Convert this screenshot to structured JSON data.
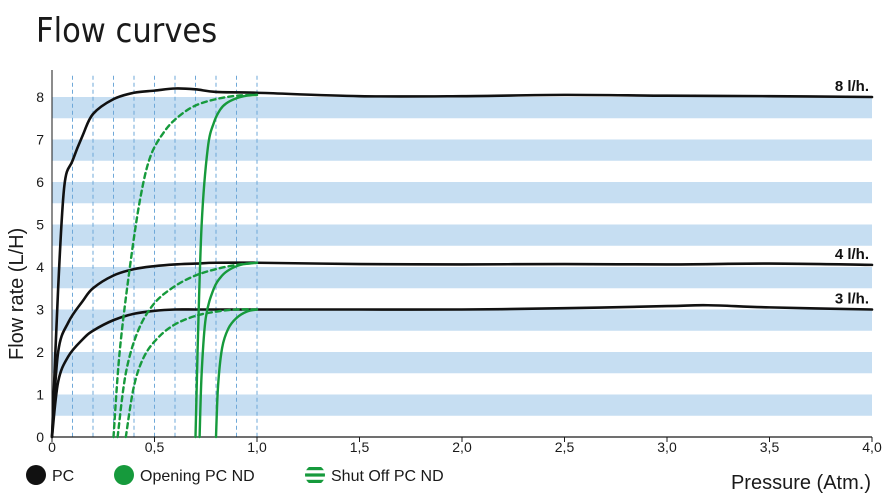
{
  "chart_data": {
    "type": "line",
    "title": "Flow curves",
    "xlabel": "Pressure (Atm.)",
    "ylabel": "Flow rate (L/H)",
    "xlim": [
      0,
      4.0
    ],
    "ylim": [
      0,
      8.5
    ],
    "x_ticks": [
      "0",
      "0,5",
      "1,0",
      "1,5",
      "2,0",
      "2,5",
      "3,0",
      "3,5",
      "4,0"
    ],
    "y_ticks": [
      "0",
      "1",
      "2",
      "3",
      "4",
      "5",
      "6",
      "7",
      "8"
    ],
    "legend": [
      {
        "label": "PC",
        "color": "#111111",
        "style": "dot"
      },
      {
        "label": "Opening PC ND",
        "color": "#169a3c",
        "style": "dot"
      },
      {
        "label": "Shut Off PC ND",
        "color": "#169a3c",
        "style": "striped"
      }
    ],
    "series": [
      {
        "name": "8 l/h.",
        "group": "PC",
        "color": "#111111",
        "dash": false,
        "x": [
          0.0,
          0.03,
          0.06,
          0.1,
          0.15,
          0.2,
          0.3,
          0.4,
          0.5,
          0.6,
          0.7,
          0.8,
          1.0,
          1.5,
          2.0,
          2.5,
          3.0,
          3.5,
          4.0
        ],
        "y": [
          0.0,
          3.5,
          5.9,
          6.5,
          7.1,
          7.6,
          7.95,
          8.1,
          8.15,
          8.2,
          8.18,
          8.12,
          8.1,
          8.02,
          8.02,
          8.05,
          8.03,
          8.02,
          8.0
        ]
      },
      {
        "name": "4 l/h.",
        "group": "PC",
        "color": "#111111",
        "dash": false,
        "x": [
          0.0,
          0.03,
          0.08,
          0.15,
          0.2,
          0.3,
          0.4,
          0.5,
          0.6,
          0.7,
          0.8,
          1.0,
          1.5,
          2.0,
          2.5,
          3.0,
          3.5,
          4.0
        ],
        "y": [
          0.0,
          2.0,
          2.7,
          3.2,
          3.5,
          3.8,
          3.95,
          4.02,
          4.06,
          4.08,
          4.1,
          4.1,
          4.07,
          4.06,
          4.07,
          4.06,
          4.08,
          4.05
        ]
      },
      {
        "name": "3 l/h.",
        "group": "PC",
        "color": "#111111",
        "dash": false,
        "x": [
          0.0,
          0.03,
          0.08,
          0.15,
          0.2,
          0.3,
          0.4,
          0.5,
          0.6,
          0.7,
          0.8,
          1.0,
          1.5,
          2.0,
          2.5,
          3.0,
          3.2,
          3.5,
          4.0
        ],
        "y": [
          0.0,
          1.3,
          1.9,
          2.3,
          2.5,
          2.75,
          2.9,
          2.97,
          3.0,
          3.0,
          3.0,
          3.0,
          3.0,
          3.0,
          3.03,
          3.08,
          3.1,
          3.05,
          3.0
        ]
      },
      {
        "name": "",
        "group": "Shut Off PC ND",
        "color": "#169a3c",
        "dash": true,
        "x": [
          0.3,
          0.33,
          0.38,
          0.43,
          0.48,
          0.55,
          0.62,
          0.7,
          0.8,
          0.9,
          1.0
        ],
        "y": [
          0.0,
          2.0,
          4.0,
          5.6,
          6.6,
          7.2,
          7.55,
          7.8,
          7.95,
          8.03,
          8.05
        ]
      },
      {
        "name": "",
        "group": "Shut Off PC ND",
        "color": "#169a3c",
        "dash": true,
        "x": [
          0.32,
          0.36,
          0.42,
          0.5,
          0.6,
          0.7,
          0.8,
          0.9,
          1.0
        ],
        "y": [
          0.0,
          1.5,
          2.5,
          3.15,
          3.55,
          3.8,
          3.95,
          4.05,
          4.1
        ]
      },
      {
        "name": "",
        "group": "Shut Off PC ND",
        "color": "#169a3c",
        "dash": true,
        "x": [
          0.36,
          0.4,
          0.45,
          0.52,
          0.6,
          0.7,
          0.8,
          0.9,
          1.0
        ],
        "y": [
          0.0,
          1.2,
          1.9,
          2.35,
          2.65,
          2.85,
          2.95,
          3.0,
          3.0
        ]
      },
      {
        "name": "",
        "group": "Opening PC ND",
        "color": "#169a3c",
        "dash": false,
        "x": [
          0.7,
          0.71,
          0.73,
          0.76,
          0.79,
          0.82,
          0.85,
          0.9,
          0.95,
          1.0
        ],
        "y": [
          0.0,
          2.0,
          5.0,
          6.8,
          7.4,
          7.7,
          7.85,
          7.97,
          8.03,
          8.05
        ]
      },
      {
        "name": "",
        "group": "Opening PC ND",
        "color": "#169a3c",
        "dash": false,
        "x": [
          0.72,
          0.73,
          0.75,
          0.79,
          0.83,
          0.87,
          0.92,
          0.96,
          1.0
        ],
        "y": [
          0.0,
          1.5,
          2.8,
          3.5,
          3.8,
          3.95,
          4.05,
          4.08,
          4.1
        ]
      },
      {
        "name": "",
        "group": "Opening PC ND",
        "color": "#169a3c",
        "dash": false,
        "x": [
          0.8,
          0.81,
          0.83,
          0.86,
          0.9,
          0.95,
          1.0
        ],
        "y": [
          0.0,
          1.2,
          2.1,
          2.55,
          2.8,
          2.95,
          3.0
        ]
      }
    ],
    "grid": {
      "horizontal_bands": true,
      "band_color": "#c6def2",
      "vertical_dashed_lines": [
        0.1,
        0.2,
        0.3,
        0.4,
        0.5,
        0.6,
        0.7,
        0.8,
        0.9,
        1.0
      ]
    }
  }
}
